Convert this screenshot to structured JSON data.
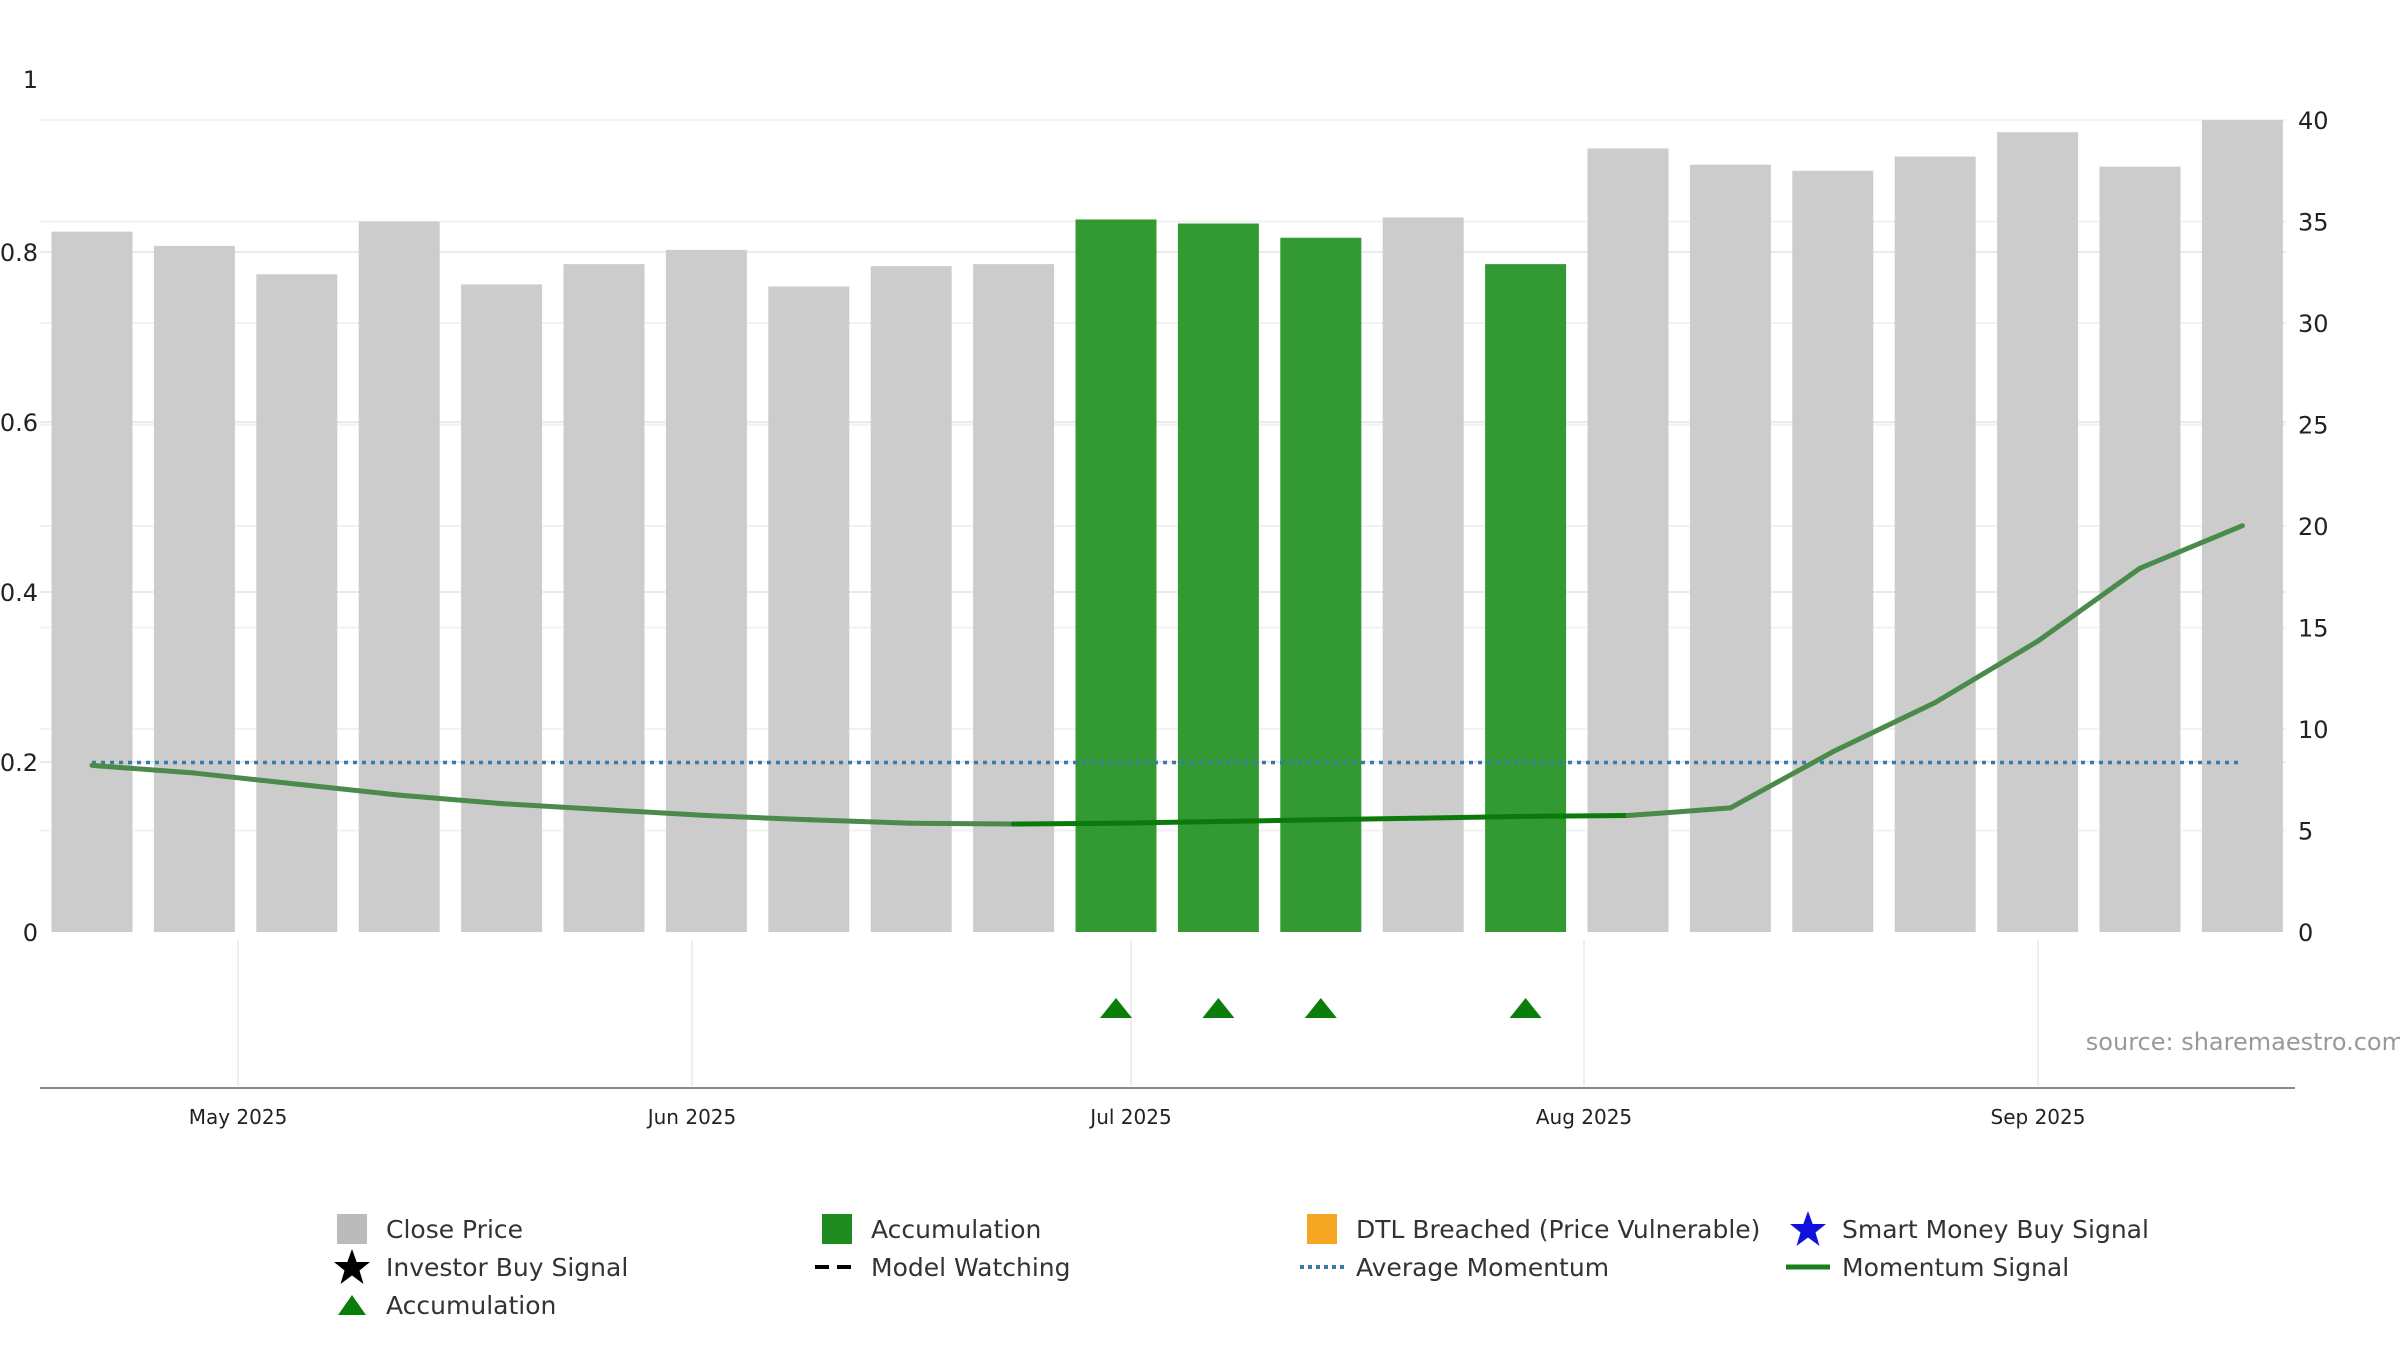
{
  "chart_data": {
    "type": "bar",
    "source_label": "source: sharemaestro.com",
    "left_axis": {
      "ticks": [
        "0",
        "0.2",
        "0.4",
        "0.6",
        "0.8",
        "1"
      ],
      "range": [
        0,
        1.0
      ]
    },
    "right_axis": {
      "ticks": [
        "0",
        "5",
        "10",
        "15",
        "20",
        "25",
        "30",
        "35",
        "40"
      ],
      "range": [
        0,
        40
      ]
    },
    "x_axis": {
      "ticks": [
        "May 2025",
        "Jun 2025",
        "Jul 2025",
        "Aug 2025",
        "Sep 2025"
      ]
    },
    "series": [
      {
        "name": "Close Price",
        "kind": "bar",
        "axis": "right",
        "values": [
          34.5,
          33.8,
          32.4,
          35.0,
          31.9,
          32.9,
          33.6,
          31.8,
          32.8,
          32.9,
          35.1,
          34.9,
          34.2,
          35.2,
          32.9,
          38.6,
          37.8,
          37.5,
          38.2,
          39.4,
          37.7,
          40.0
        ],
        "accumulation_flags": [
          false,
          false,
          false,
          false,
          false,
          false,
          false,
          false,
          false,
          false,
          true,
          true,
          true,
          false,
          true,
          false,
          false,
          false,
          false,
          false,
          false,
          false
        ]
      },
      {
        "name": "Momentum Signal",
        "kind": "line",
        "axis": "left",
        "values": [
          0.196,
          0.187,
          0.174,
          0.161,
          0.151,
          0.144,
          0.137,
          0.132,
          0.128,
          0.127,
          0.128,
          0.13,
          0.132,
          0.134,
          0.136,
          0.137,
          0.146,
          0.212,
          0.27,
          0.342,
          0.428,
          0.478
        ]
      },
      {
        "name": "Average Momentum",
        "kind": "line",
        "axis": "left",
        "value": 0.21
      }
    ],
    "accumulation_markers_at_bars": [
      11,
      12,
      13,
      15
    ],
    "legend": [
      {
        "label": "Close Price",
        "icon": "gray-square",
        "color": "#bbbbbb"
      },
      {
        "label": "Accumulation",
        "icon": "green-square",
        "color": "#1f8c1f"
      },
      {
        "label": "DTL Breached (Price Vulnerable)",
        "icon": "orange-square",
        "color": "#f5a623"
      },
      {
        "label": "Smart Money Buy Signal",
        "icon": "blue-star",
        "color": "#1010dd"
      },
      {
        "label": "Investor Buy Signal",
        "icon": "black-star",
        "color": "#000000"
      },
      {
        "label": "Model Watching",
        "icon": "black-dashed-line",
        "color": "#000000"
      },
      {
        "label": "Average Momentum",
        "icon": "blue-dotted-line",
        "color": "#3a7aa8"
      },
      {
        "label": "Momentum Signal",
        "icon": "green-solid-line",
        "color": "#1a7f1a"
      },
      {
        "label": "Accumulation",
        "icon": "green-triangle",
        "color": "#0a7d0a"
      }
    ],
    "colors": {
      "bar_gray": "#cccccc",
      "bar_green": "#339933",
      "momentum_line": "#4a8a4a",
      "momentum_line_strong": "#0b7a0b",
      "avg_line": "#3a7aa8",
      "marker": "#0a7d0a"
    }
  }
}
